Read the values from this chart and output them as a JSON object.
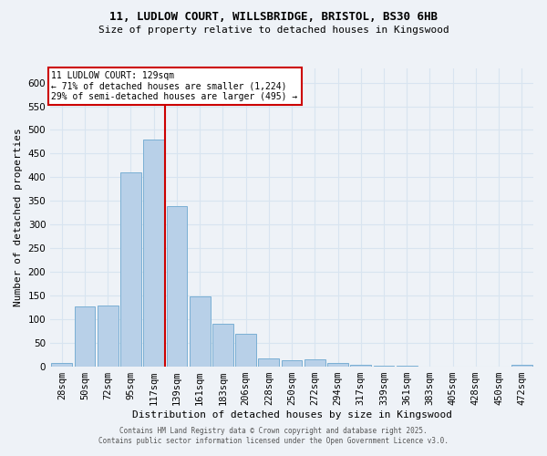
{
  "title_line1": "11, LUDLOW COURT, WILLSBRIDGE, BRISTOL, BS30 6HB",
  "title_line2": "Size of property relative to detached houses in Kingswood",
  "xlabel": "Distribution of detached houses by size in Kingswood",
  "ylabel": "Number of detached properties",
  "categories": [
    "28sqm",
    "50sqm",
    "72sqm",
    "95sqm",
    "117sqm",
    "139sqm",
    "161sqm",
    "183sqm",
    "206sqm",
    "228sqm",
    "250sqm",
    "272sqm",
    "294sqm",
    "317sqm",
    "339sqm",
    "361sqm",
    "383sqm",
    "405sqm",
    "428sqm",
    "450sqm",
    "472sqm"
  ],
  "values": [
    8,
    128,
    130,
    410,
    480,
    340,
    148,
    90,
    70,
    18,
    14,
    15,
    7,
    4,
    3,
    2,
    0,
    0,
    0,
    0,
    4
  ],
  "bar_color": "#b8d0e8",
  "bar_edge_color": "#7aafd4",
  "red_line_x": 4.5,
  "annotation_title": "11 LUDLOW COURT: 129sqm",
  "annotation_line1": "← 71% of detached houses are smaller (1,224)",
  "annotation_line2": "29% of semi-detached houses are larger (495) →",
  "box_face_color": "#ffffff",
  "box_edge_color": "#cc0000",
  "ylim": [
    0,
    630
  ],
  "yticks": [
    0,
    50,
    100,
    150,
    200,
    250,
    300,
    350,
    400,
    450,
    500,
    550,
    600
  ],
  "footer_line1": "Contains HM Land Registry data © Crown copyright and database right 2025.",
  "footer_line2": "Contains public sector information licensed under the Open Government Licence v3.0.",
  "background_color": "#eef2f7",
  "grid_color": "#d8e4f0",
  "title1_fontsize": 9,
  "title2_fontsize": 8,
  "xlabel_fontsize": 8,
  "ylabel_fontsize": 8,
  "xtick_fontsize": 6.5,
  "ytick_fontsize": 7.5,
  "annot_fontsize": 7,
  "footer_fontsize": 5.5
}
